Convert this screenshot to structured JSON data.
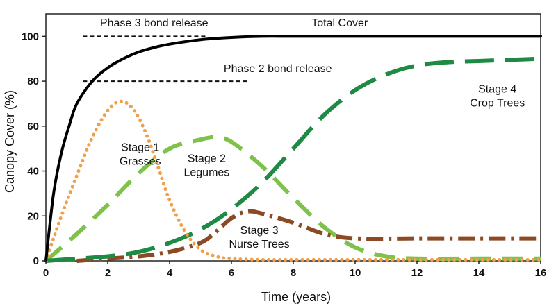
{
  "chart_data": {
    "type": "line",
    "xlabel": "Time (years)",
    "ylabel": "Canopy Cover (%)",
    "xlim": [
      0,
      16
    ],
    "ylim": [
      0,
      110
    ],
    "x_ticks": [
      "0",
      "2",
      "4",
      "6",
      "8",
      "10",
      "12",
      "14",
      "16"
    ],
    "y_ticks": [
      "0",
      "20",
      "40",
      "60",
      "80",
      "100"
    ],
    "grid": false,
    "series": [
      {
        "name": "Total Cover",
        "color": "#000000",
        "style": "solid",
        "x": [
          0,
          0.25,
          0.5,
          0.75,
          1,
          1.5,
          2,
          2.5,
          3,
          3.5,
          4,
          5,
          6,
          7,
          8,
          10,
          12,
          14,
          16
        ],
        "y": [
          0,
          30,
          48,
          60,
          70,
          80,
          86,
          90,
          93,
          95,
          96.5,
          98.5,
          99.5,
          100,
          100,
          100,
          100,
          100,
          100
        ]
      },
      {
        "name": "Stage 1 Grasses",
        "color": "#f0a04b",
        "style": "dotted",
        "x": [
          0,
          0.5,
          1,
          1.5,
          2,
          2.4,
          2.8,
          3.2,
          3.6,
          4,
          4.5,
          5,
          5.5,
          6,
          7,
          8,
          10,
          12,
          14,
          16
        ],
        "y": [
          0,
          20,
          38,
          55,
          67,
          71,
          68,
          58,
          43,
          27,
          13,
          5,
          2,
          1,
          0.5,
          0.5,
          0.5,
          0.5,
          0.5,
          0.5
        ]
      },
      {
        "name": "Stage 2 Legumes",
        "color": "#7ec24a",
        "style": "dashed",
        "x": [
          0,
          1,
          2,
          3,
          4,
          5,
          5.5,
          6,
          7,
          8,
          9,
          10,
          11,
          12,
          14,
          16
        ],
        "y": [
          0,
          12,
          25,
          39,
          50,
          54,
          55,
          53,
          42,
          28,
          15,
          6,
          2,
          1,
          1,
          1
        ]
      },
      {
        "name": "Stage 3 Nurse Trees",
        "color": "#8b4a24",
        "style": "dash-dot",
        "x": [
          1,
          2,
          3,
          4,
          5,
          5.5,
          6,
          6.5,
          7,
          8,
          9,
          10,
          12,
          14,
          16
        ],
        "y": [
          0,
          1,
          2,
          4,
          8,
          13,
          19,
          22,
          21,
          17,
          12,
          10,
          10,
          10,
          10
        ]
      },
      {
        "name": "Stage 4 Crop Trees",
        "color": "#1e8a44",
        "style": "long-dash",
        "x": [
          0,
          1,
          2,
          3,
          4,
          5,
          6,
          7,
          8,
          9,
          10,
          11,
          12,
          13,
          14,
          15,
          16
        ],
        "y": [
          0,
          1,
          2,
          4,
          8,
          14,
          23,
          35,
          50,
          65,
          76,
          83,
          87,
          88.5,
          89,
          89.5,
          90
        ]
      }
    ],
    "reference_lines": [
      {
        "name": "Phase 3 bond release",
        "y": 100,
        "x": [
          1.2,
          5.2
        ]
      },
      {
        "name": "Phase 2 bond release",
        "y": 80,
        "x": [
          1.2,
          6.5
        ]
      }
    ],
    "annotations": [
      {
        "lines": [
          "Phase 3 bond release"
        ],
        "x": 3.5,
        "y": 104.5
      },
      {
        "lines": [
          "Total Cover"
        ],
        "x": 9.5,
        "y": 104.5
      },
      {
        "lines": [
          "Phase 2 bond release"
        ],
        "x": 7.5,
        "y": 84
      },
      {
        "lines": [
          "Stage 4",
          "Crop Trees"
        ],
        "x": 14.6,
        "y": 75
      },
      {
        "lines": [
          "Stage 1",
          "Grasses"
        ],
        "x": 3.05,
        "y": 49
      },
      {
        "lines": [
          "Stage 2",
          "Legumes"
        ],
        "x": 5.2,
        "y": 44
      },
      {
        "lines": [
          "Stage 3",
          "Nurse Trees"
        ],
        "x": 6.9,
        "y": 12
      }
    ]
  }
}
